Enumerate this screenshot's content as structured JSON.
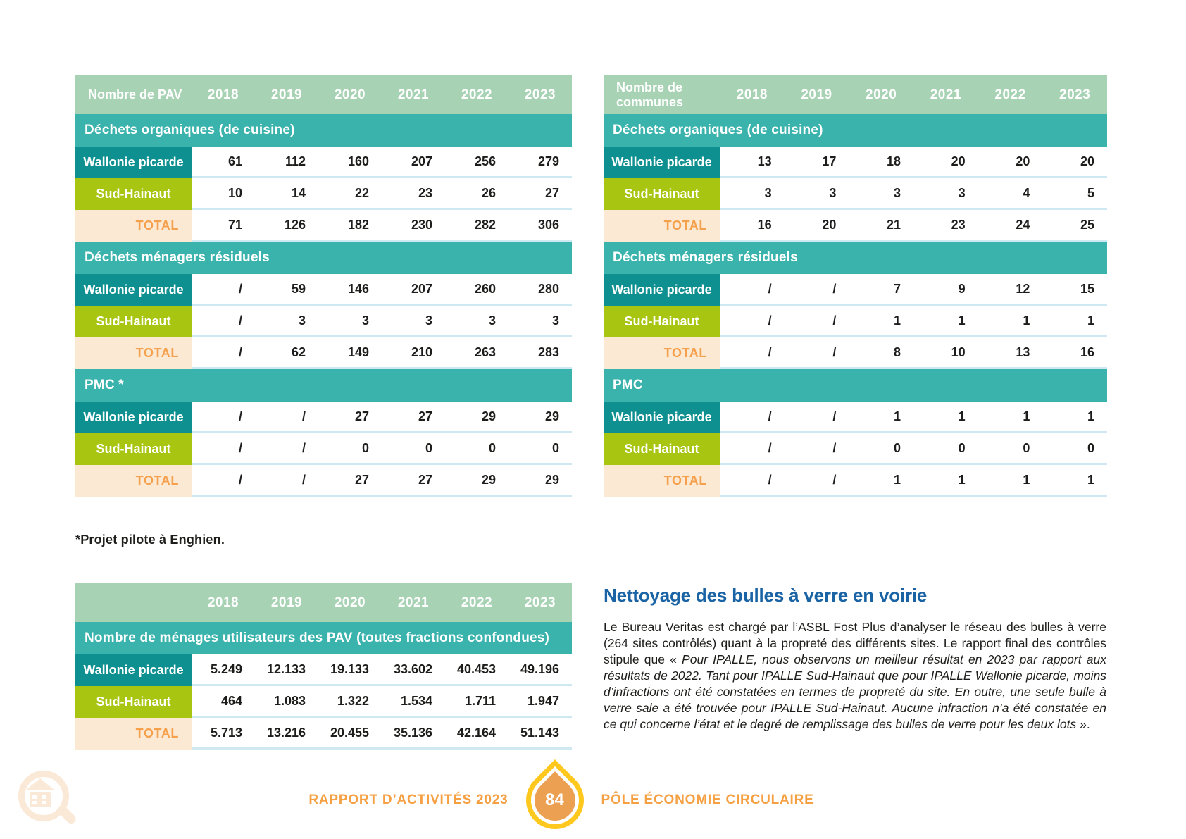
{
  "years": [
    "2018",
    "2019",
    "2020",
    "2021",
    "2022",
    "2023"
  ],
  "tables": [
    {
      "title": "Nombre de PAV",
      "sections": [
        {
          "header": "Déchets organiques (de cuisine)",
          "rows": [
            {
              "label": "Wallonie picarde",
              "type": "wp",
              "values": [
                "61",
                "112",
                "160",
                "207",
                "256",
                "279"
              ]
            },
            {
              "label": "Sud-Hainaut",
              "type": "sh",
              "values": [
                "10",
                "14",
                "22",
                "23",
                "26",
                "27"
              ]
            },
            {
              "label": "TOTAL",
              "type": "total",
              "values": [
                "71",
                "126",
                "182",
                "230",
                "282",
                "306"
              ]
            }
          ]
        },
        {
          "header": "Déchets ménagers résiduels",
          "rows": [
            {
              "label": "Wallonie picarde",
              "type": "wp",
              "values": [
                "/",
                "59",
                "146",
                "207",
                "260",
                "280"
              ]
            },
            {
              "label": "Sud-Hainaut",
              "type": "sh",
              "values": [
                "/",
                "3",
                "3",
                "3",
                "3",
                "3"
              ]
            },
            {
              "label": "TOTAL",
              "type": "total",
              "values": [
                "/",
                "62",
                "149",
                "210",
                "263",
                "283"
              ]
            }
          ]
        },
        {
          "header": "PMC *",
          "rows": [
            {
              "label": "Wallonie picarde",
              "type": "wp",
              "values": [
                "/",
                "/",
                "27",
                "27",
                "29",
                "29"
              ]
            },
            {
              "label": "Sud-Hainaut",
              "type": "sh",
              "values": [
                "/",
                "/",
                "0",
                "0",
                "0",
                "0"
              ]
            },
            {
              "label": "TOTAL",
              "type": "total",
              "values": [
                "/",
                "/",
                "27",
                "27",
                "29",
                "29"
              ]
            }
          ]
        }
      ]
    },
    {
      "title": "Nombre de communes",
      "sections": [
        {
          "header": "Déchets organiques (de cuisine)",
          "rows": [
            {
              "label": "Wallonie picarde",
              "type": "wp",
              "values": [
                "13",
                "17",
                "18",
                "20",
                "20",
                "20"
              ]
            },
            {
              "label": "Sud-Hainaut",
              "type": "sh",
              "values": [
                "3",
                "3",
                "3",
                "3",
                "4",
                "5"
              ]
            },
            {
              "label": "TOTAL",
              "type": "total",
              "values": [
                "16",
                "20",
                "21",
                "23",
                "24",
                "25"
              ]
            }
          ]
        },
        {
          "header": "Déchets ménagers résiduels",
          "rows": [
            {
              "label": "Wallonie picarde",
              "type": "wp",
              "values": [
                "/",
                "/",
                "7",
                "9",
                "12",
                "15"
              ]
            },
            {
              "label": "Sud-Hainaut",
              "type": "sh",
              "values": [
                "/",
                "/",
                "1",
                "1",
                "1",
                "1"
              ]
            },
            {
              "label": "TOTAL",
              "type": "total",
              "values": [
                "/",
                "/",
                "8",
                "10",
                "13",
                "16"
              ]
            }
          ]
        },
        {
          "header": "PMC",
          "rows": [
            {
              "label": "Wallonie picarde",
              "type": "wp",
              "values": [
                "/",
                "/",
                "1",
                "1",
                "1",
                "1"
              ]
            },
            {
              "label": "Sud-Hainaut",
              "type": "sh",
              "values": [
                "/",
                "/",
                "0",
                "0",
                "0",
                "0"
              ]
            },
            {
              "label": "TOTAL",
              "type": "total",
              "values": [
                "/",
                "/",
                "1",
                "1",
                "1",
                "1"
              ]
            }
          ]
        }
      ]
    },
    {
      "title": "",
      "sections": [
        {
          "header": "Nombre de ménages utilisateurs des PAV (toutes fractions confondues)",
          "rows": [
            {
              "label": "Wallonie picarde",
              "type": "wp",
              "values": [
                "5.249",
                "12.133",
                "19.133",
                "33.602",
                "40.453",
                "49.196"
              ]
            },
            {
              "label": "Sud-Hainaut",
              "type": "sh",
              "values": [
                "464",
                "1.083",
                "1.322",
                "1.534",
                "1.711",
                "1.947"
              ]
            },
            {
              "label": "TOTAL",
              "type": "total",
              "values": [
                "5.713",
                "13.216",
                "20.455",
                "35.136",
                "42.164",
                "51.143"
              ]
            }
          ]
        }
      ]
    }
  ],
  "footnote": "*Projet pilote à Enghien.",
  "article": {
    "title": "Nettoyage des bulles à verre en voirie",
    "body_intro": "Le Bureau Veritas est chargé par l’ASBL Fost Plus d’analyser le réseau des bulles à verre (264 sites contrôlés) quant à la propreté des différents sites. Le rapport final des contrôles stipule que « ",
    "body_quote": "Pour IPALLE, nous observons un meilleur résultat en 2023 par rapport aux résultats de 2022. Tant pour IPALLE Sud-Hainaut que pour IPALLE Wallonie picarde, moins d’infractions ont été constatées en termes de propreté du site. En outre, une seule bulle à verre sale a été trouvée pour IPALLE Sud-Hainaut. Aucune infraction n’a été constatée en ce qui concerne l’état et le degré de remplissage des bulles de verre pour les deux lots",
    "body_end": " »."
  },
  "footer": {
    "report_label": "RAPPORT D’ACTIVITÉS 2023",
    "page_number": "84",
    "pole_label": "PÔLE ÉCONOMIE CIRCULAIRE"
  },
  "colors": {
    "header_green": "#a7d2b3",
    "section_teal": "#3bb3ad",
    "label_teal": "#0e8f90",
    "label_lime": "#a7c511",
    "total_bg": "#fce9d4",
    "total_text": "#f4a04c",
    "row_divider": "#cfe9f3",
    "heading_blue": "#1a64a5",
    "footer_orange": "#f5a042",
    "badge_yellow": "#ffc81e",
    "badge_orange": "#eca052",
    "watermark_peach": "#fbe9d7"
  }
}
